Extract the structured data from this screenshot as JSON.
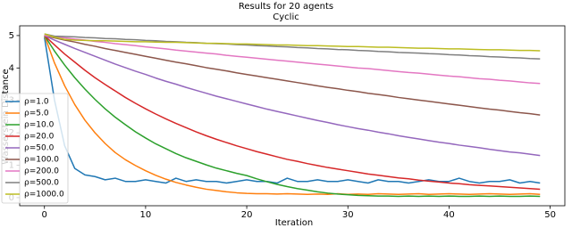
{
  "chart_data": {
    "type": "line",
    "title": "Results for 20 agents",
    "subtitle": "Cyclic",
    "x_label": "Iteration",
    "y_label": "Wasserstein Distance",
    "x": [
      0,
      1,
      2,
      3,
      4,
      5,
      6,
      7,
      8,
      9,
      10,
      11,
      12,
      13,
      14,
      15,
      16,
      17,
      18,
      19,
      20,
      21,
      22,
      23,
      24,
      25,
      26,
      27,
      28,
      29,
      30,
      31,
      32,
      33,
      34,
      35,
      36,
      37,
      38,
      39,
      40,
      41,
      42,
      43,
      44,
      45,
      46,
      47,
      48,
      49
    ],
    "xlim": [
      -2.45,
      51.45
    ],
    "xticks": [
      0,
      10,
      20,
      30,
      40,
      50
    ],
    "ylim": [
      -0.25,
      5.3
    ],
    "yticks": [
      0,
      1,
      2,
      3,
      4,
      5
    ],
    "legend": "lower left",
    "series": [
      {
        "name": "ρ=1.0",
        "color": "#1f77b4",
        "values": [
          4.95,
          3.0,
          1.6,
          0.9,
          0.7,
          0.65,
          0.55,
          0.6,
          0.5,
          0.5,
          0.55,
          0.5,
          0.45,
          0.6,
          0.5,
          0.55,
          0.5,
          0.5,
          0.45,
          0.5,
          0.55,
          0.5,
          0.5,
          0.45,
          0.6,
          0.5,
          0.5,
          0.55,
          0.5,
          0.5,
          0.55,
          0.5,
          0.45,
          0.55,
          0.5,
          0.5,
          0.45,
          0.5,
          0.55,
          0.5,
          0.5,
          0.6,
          0.5,
          0.45,
          0.5,
          0.5,
          0.55,
          0.45,
          0.5,
          0.45
        ]
      },
      {
        "name": "ρ=5.0",
        "color": "#ff7f0e",
        "values": [
          5.0,
          4.15,
          3.45,
          2.87,
          2.39,
          2.0,
          1.67,
          1.39,
          1.17,
          0.99,
          0.83,
          0.69,
          0.57,
          0.47,
          0.39,
          0.32,
          0.26,
          0.22,
          0.18,
          0.15,
          0.13,
          0.12,
          0.12,
          0.11,
          0.12,
          0.11,
          0.1,
          0.11,
          0.1,
          0.12,
          0.1,
          0.11,
          0.1,
          0.12,
          0.11,
          0.1,
          0.11,
          0.12,
          0.1,
          0.11,
          0.12,
          0.11,
          0.1,
          0.11,
          0.12,
          0.11,
          0.1,
          0.11,
          0.12,
          0.1
        ]
      },
      {
        "name": "ρ=10.0",
        "color": "#2ca02c",
        "values": [
          5.0,
          4.52,
          4.09,
          3.7,
          3.35,
          3.03,
          2.74,
          2.48,
          2.25,
          2.03,
          1.84,
          1.66,
          1.51,
          1.36,
          1.23,
          1.12,
          1.01,
          0.91,
          0.83,
          0.75,
          0.68,
          0.58,
          0.49,
          0.41,
          0.34,
          0.28,
          0.23,
          0.18,
          0.14,
          0.11,
          0.09,
          0.07,
          0.06,
          0.05,
          0.05,
          0.04,
          0.05,
          0.04,
          0.05,
          0.04,
          0.05,
          0.04,
          0.04,
          0.05,
          0.04,
          0.05,
          0.04,
          0.04,
          0.05,
          0.04
        ]
      },
      {
        "name": "ρ=20.0",
        "color": "#d62728",
        "values": [
          5.0,
          4.71,
          4.43,
          4.18,
          3.93,
          3.7,
          3.49,
          3.29,
          3.09,
          2.91,
          2.74,
          2.58,
          2.43,
          2.29,
          2.16,
          2.03,
          1.91,
          1.8,
          1.7,
          1.6,
          1.51,
          1.42,
          1.34,
          1.26,
          1.18,
          1.12,
          1.05,
          0.99,
          0.93,
          0.88,
          0.83,
          0.78,
          0.73,
          0.69,
          0.65,
          0.61,
          0.58,
          0.54,
          0.51,
          0.48,
          0.45,
          0.43,
          0.4,
          0.38,
          0.36,
          0.34,
          0.32,
          0.3,
          0.28,
          0.26
        ]
      },
      {
        "name": "ρ=50.0",
        "color": "#9467bd",
        "values": [
          5.0,
          4.86,
          4.73,
          4.6,
          4.48,
          4.36,
          4.24,
          4.12,
          4.01,
          3.9,
          3.8,
          3.69,
          3.59,
          3.5,
          3.4,
          3.31,
          3.22,
          3.13,
          3.05,
          2.97,
          2.89,
          2.81,
          2.73,
          2.66,
          2.59,
          2.52,
          2.45,
          2.38,
          2.32,
          2.25,
          2.19,
          2.13,
          2.08,
          2.02,
          1.97,
          1.91,
          1.86,
          1.81,
          1.76,
          1.71,
          1.67,
          1.62,
          1.58,
          1.54,
          1.49,
          1.45,
          1.41,
          1.38,
          1.34,
          1.3
        ]
      },
      {
        "name": "ρ=100.0",
        "color": "#8c564b",
        "values": [
          5.0,
          4.93,
          4.86,
          4.8,
          4.73,
          4.67,
          4.6,
          4.54,
          4.48,
          4.42,
          4.36,
          4.3,
          4.24,
          4.18,
          4.13,
          4.07,
          4.01,
          3.96,
          3.91,
          3.85,
          3.8,
          3.75,
          3.7,
          3.65,
          3.6,
          3.55,
          3.5,
          3.45,
          3.4,
          3.36,
          3.31,
          3.27,
          3.22,
          3.18,
          3.14,
          3.09,
          3.05,
          3.01,
          2.97,
          2.93,
          2.89,
          2.85,
          2.81,
          2.77,
          2.73,
          2.7,
          2.66,
          2.62,
          2.59,
          2.55
        ]
      },
      {
        "name": "ρ=200.0",
        "color": "#e377c2",
        "values": [
          5.0,
          4.96,
          4.93,
          4.89,
          4.86,
          4.82,
          4.79,
          4.75,
          4.72,
          4.69,
          4.65,
          4.62,
          4.59,
          4.55,
          4.52,
          4.49,
          4.46,
          4.43,
          4.39,
          4.36,
          4.33,
          4.3,
          4.27,
          4.24,
          4.21,
          4.18,
          4.15,
          4.12,
          4.09,
          4.06,
          4.03,
          4.0,
          3.98,
          3.95,
          3.92,
          3.89,
          3.86,
          3.84,
          3.81,
          3.78,
          3.75,
          3.73,
          3.7,
          3.67,
          3.65,
          3.62,
          3.6,
          3.57,
          3.54,
          3.52
        ]
      },
      {
        "name": "ρ=500.0",
        "color": "#7f7f7f",
        "values": [
          5.05,
          4.98,
          4.97,
          4.96,
          4.94,
          4.93,
          4.91,
          4.9,
          4.88,
          4.87,
          4.85,
          4.84,
          4.82,
          4.81,
          4.79,
          4.78,
          4.76,
          4.75,
          4.74,
          4.72,
          4.71,
          4.69,
          4.68,
          4.66,
          4.65,
          4.63,
          4.62,
          4.6,
          4.59,
          4.57,
          4.56,
          4.54,
          4.53,
          4.51,
          4.5,
          4.48,
          4.47,
          4.46,
          4.44,
          4.43,
          4.41,
          4.4,
          4.38,
          4.37,
          4.35,
          4.34,
          4.32,
          4.31,
          4.29,
          4.28
        ]
      },
      {
        "name": "ρ=1000.0",
        "color": "#bcbd22",
        "values": [
          5.05,
          4.95,
          4.88,
          4.86,
          4.85,
          4.84,
          4.84,
          4.83,
          4.82,
          4.81,
          4.81,
          4.8,
          4.79,
          4.79,
          4.78,
          4.77,
          4.76,
          4.76,
          4.75,
          4.74,
          4.74,
          4.73,
          4.72,
          4.71,
          4.71,
          4.7,
          4.69,
          4.69,
          4.68,
          4.67,
          4.66,
          4.66,
          4.65,
          4.64,
          4.64,
          4.63,
          4.62,
          4.61,
          4.61,
          4.6,
          4.59,
          4.59,
          4.58,
          4.57,
          4.56,
          4.56,
          4.55,
          4.54,
          4.54,
          4.53
        ]
      }
    ]
  }
}
